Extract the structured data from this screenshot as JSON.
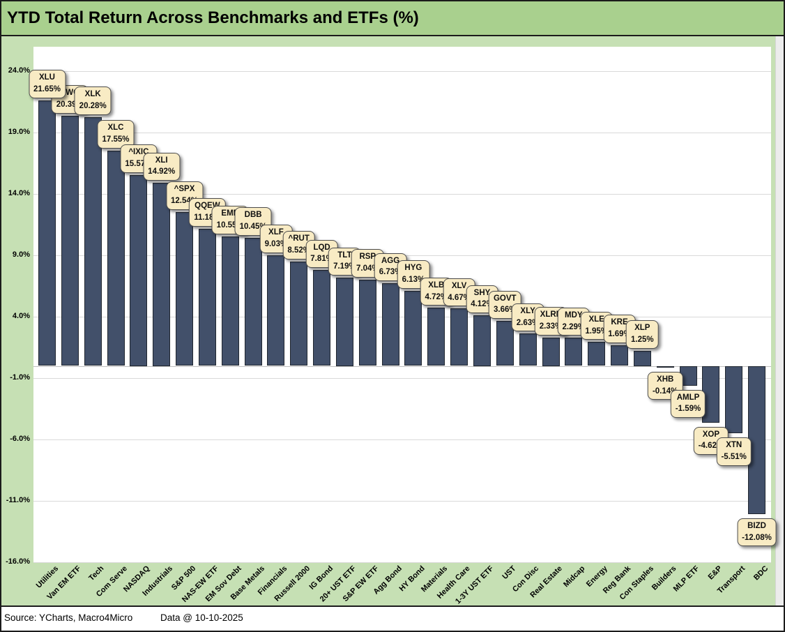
{
  "title": "YTD Total Return Across Benchmarks and ETFs (%)",
  "footer": {
    "source": "Source: YCharts, Macro4Micro",
    "data_date": "Data @ 10-10-2025"
  },
  "colors": {
    "title_band_bg": "#A9D08E",
    "chart_bg": "#C6E0B4",
    "plot_bg": "#FFFFFF",
    "bar_fill": "#42506A",
    "bar_border": "#20262F",
    "callout_bg": "#F8EBC4",
    "callout_border": "#4D4D4D",
    "gridline": "#D9D9D9",
    "text": "#000000"
  },
  "chart_data": {
    "type": "bar",
    "title": "YTD Total Return Across Benchmarks and ETFs (%)",
    "xlabel": "",
    "ylabel": "",
    "ylim": [
      -16,
      26
    ],
    "grid": true,
    "legend": false,
    "yticks": [
      24,
      19,
      14,
      9,
      4,
      -1,
      -6,
      -11,
      -16
    ],
    "ytick_labels": [
      "24.0%",
      "19.0%",
      "14.0%",
      "9.0%",
      "4.0%",
      "-1.0%",
      "-6.0%",
      "-11.0%",
      "-16.0%"
    ],
    "categories": [
      "Utilities",
      "Van EM ETF",
      "Tech",
      "Com Serve",
      "NASDAQ",
      "Industrials",
      "S&P 500",
      "NAS-EW ETF",
      "EM Sov Debt",
      "Base Metals",
      "Financials",
      "Russell 2000",
      "IG Bond",
      "20+ UST ETF",
      "S&P EW ETF",
      "Agg Bond",
      "HY Bond",
      "Materials",
      "Health Care",
      "1-3Y UST ETF",
      "UST",
      "Con Disc",
      "Real Estate",
      "Midcap",
      "Energy",
      "Reg Bank",
      "Con Staples",
      "Builders",
      "MLP ETF",
      "E&P",
      "Transport",
      "BDC"
    ],
    "tickers": [
      "XLU",
      "VWO",
      "XLK",
      "XLC",
      "^IXIC",
      "XLI",
      "^SPX",
      "QQEW",
      "EMB",
      "DBB",
      "XLF",
      "^RUT",
      "LQD",
      "TLT",
      "RSP",
      "AGG",
      "HYG",
      "XLB",
      "XLV",
      "SHY",
      "GOVT",
      "XLY",
      "XLRE",
      "MDY",
      "XLE",
      "KRE",
      "XLP",
      "XHB",
      "AMLP",
      "XOP",
      "XTN",
      "BIZD"
    ],
    "values": [
      21.65,
      20.39,
      20.28,
      17.55,
      15.57,
      14.92,
      12.54,
      11.18,
      10.55,
      10.45,
      9.03,
      8.52,
      7.81,
      7.19,
      7.04,
      6.73,
      6.13,
      4.72,
      4.67,
      4.12,
      3.66,
      2.63,
      2.33,
      2.29,
      1.95,
      1.69,
      1.25,
      -0.14,
      -1.59,
      -4.62,
      -5.51,
      -12.08
    ]
  }
}
